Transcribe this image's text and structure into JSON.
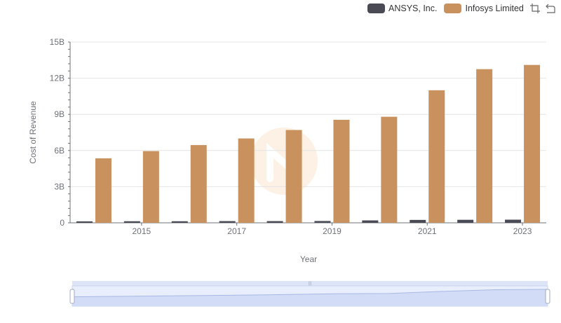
{
  "legend": {
    "items": [
      {
        "label": "ANSYS, Inc.",
        "color": "#4a4a55"
      },
      {
        "label": "Infosys Limited",
        "color": "#c8915e"
      }
    ],
    "tools": [
      "zoom-select-icon",
      "zoom-reset-icon"
    ]
  },
  "chart_data": {
    "type": "bar",
    "title": "",
    "xlabel": "Year",
    "ylabel": "Cost of Revenue",
    "categories": [
      "2014",
      "2015",
      "2016",
      "2017",
      "2018",
      "2019",
      "2020",
      "2021",
      "2022",
      "2023"
    ],
    "x_tick_labels": [
      "2015",
      "2017",
      "2019",
      "2021",
      "2023"
    ],
    "y_tick_labels": [
      "0",
      "3B",
      "6B",
      "9B",
      "12B",
      "15B"
    ],
    "ylim": [
      0,
      15000000000
    ],
    "grid": true,
    "legend_position": "top-right",
    "series": [
      {
        "name": "ANSYS, Inc.",
        "color": "#4a4a55",
        "values": [
          120000000,
          130000000,
          130000000,
          140000000,
          140000000,
          150000000,
          200000000,
          240000000,
          250000000,
          260000000
        ]
      },
      {
        "name": "Infosys Limited",
        "color": "#c8915e",
        "values": [
          5350000000,
          5950000000,
          6450000000,
          7000000000,
          7700000000,
          8550000000,
          8800000000,
          11000000000,
          12750000000,
          13100000000
        ]
      }
    ]
  },
  "data_zoom": {
    "range_start": 0,
    "range_end": 100
  }
}
